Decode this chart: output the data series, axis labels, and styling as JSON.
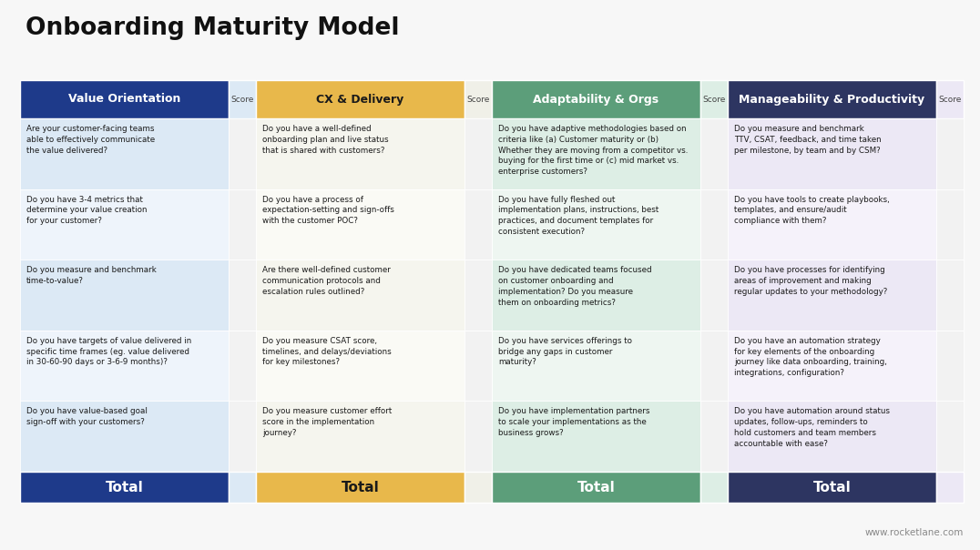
{
  "title": "Onboarding Maturity Model",
  "watermark": "www.rocketlane.com",
  "bg_color": "#f7f7f7",
  "columns": [
    {
      "name": "Value Orientation",
      "header_color": "#1e3a8a",
      "header_text_color": "#ffffff",
      "cell_bg_odd": "#dce9f5",
      "cell_bg_even": "#eef4fb",
      "footer_color": "#1e3a8a",
      "footer_text_color": "#ffffff",
      "score_bg": "#dce9f5",
      "items": [
        "Are your customer-facing teams\nable to effectively communicate\nthe value delivered?",
        "Do you have 3-4 metrics that\ndetermine your value creation\nfor your customer?",
        "Do you measure and benchmark\ntime-to-value?",
        "Do you have targets of value delivered in\nspecific time frames (eg. value delivered\nin 30-60-90 days or 3-6-9 months)?",
        "Do you have value-based goal\nsign-off with your customers?"
      ]
    },
    {
      "name": "CX & Delivery",
      "header_color": "#e8b84b",
      "header_text_color": "#1a1a1a",
      "cell_bg_odd": "#f5f5ee",
      "cell_bg_even": "#fafaf5",
      "footer_color": "#e8b84b",
      "footer_text_color": "#1a1a1a",
      "score_bg": "#f0f0e8",
      "items": [
        "Do you have a well-defined\nonboarding plan and live status\nthat is shared with customers?",
        "Do you have a process of\nexpectation-setting and sign-offs\nwith the customer POC?",
        "Are there well-defined customer\ncommunication protocols and\nescalation rules outlined?",
        "Do you measure CSAT score,\ntimelines, and delays/deviations\nfor key milestones?",
        "Do you measure customer effort\nscore in the implementation\njourney?"
      ]
    },
    {
      "name": "Adaptability & Orgs",
      "header_color": "#5c9e7a",
      "header_text_color": "#ffffff",
      "cell_bg_odd": "#ddeee5",
      "cell_bg_even": "#eef6f1",
      "footer_color": "#5c9e7a",
      "footer_text_color": "#ffffff",
      "score_bg": "#ddeee5",
      "items": [
        "Do you have adaptive methodologies based on\ncriteria like (a) Customer maturity or (b)\nWhether they are moving from a competitor vs.\nbuying for the first time or (c) mid market vs.\nenterprise customers?",
        "Do you have fully fleshed out\nimplementation plans, instructions, best\npractices, and document templates for\nconsistent execution?",
        "Do you have dedicated teams focused\non customer onboarding and\nimplementation? Do you measure\nthem on onboarding metrics?",
        "Do you have services offerings to\nbridge any gaps in customer\nmaturity?",
        "Do you have implementation partners\nto scale your implementations as the\nbusiness grows?"
      ]
    },
    {
      "name": "Manageability & Productivity",
      "header_color": "#2d3561",
      "header_text_color": "#ffffff",
      "cell_bg_odd": "#ece8f5",
      "cell_bg_even": "#f5f2fa",
      "footer_color": "#2d3561",
      "footer_text_color": "#ffffff",
      "score_bg": "#ece8f5",
      "items": [
        "Do you measure and benchmark\nTTV, CSAT, feedback, and time taken\nper milestone, by team and by CSM?",
        "Do you have tools to create playbooks,\ntemplates, and ensure/audit\ncompliance with them?",
        "Do you have processes for identifying\nareas of improvement and making\nregular updates to your methodology?",
        "Do you have an automation strategy\nfor key elements of the onboarding\njourney like data onboarding, training,\nintegrations, configuration?",
        "Do you have automation around status\nupdates, follow-ups, reminders to\nhold customers and team members\naccountable with ease?"
      ]
    }
  ]
}
